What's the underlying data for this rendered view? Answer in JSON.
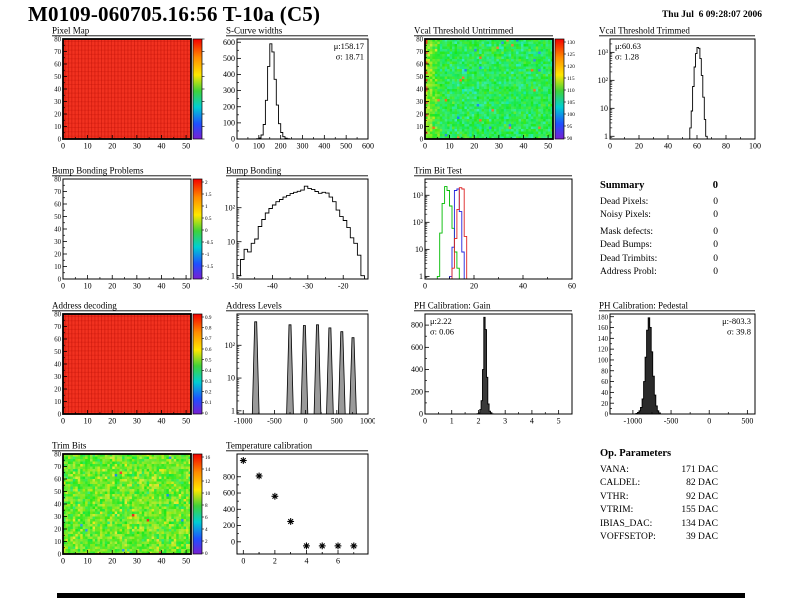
{
  "page": {
    "title": "M0109-060705.16:56 T-10a (C5)",
    "datetime": "Thu Jul  6 09:28:07 2006"
  },
  "summary": {
    "heading": "Summary",
    "heading_value": "0",
    "rows": [
      {
        "label": "Dead Pixels:",
        "value": "0"
      },
      {
        "label": "Noisy Pixels:",
        "value": "0"
      },
      {
        "label": "Mask defects:",
        "value": "0"
      },
      {
        "label": "Dead Bumps:",
        "value": "0"
      },
      {
        "label": "Dead Trimbits:",
        "value": "0"
      },
      {
        "label": "Address Probl:",
        "value": "0"
      }
    ]
  },
  "op_parameters": {
    "heading": "Op. Parameters",
    "rows": [
      {
        "label": "VANA:",
        "value": "171 DAC"
      },
      {
        "label": "CALDEL:",
        "value": "82 DAC"
      },
      {
        "label": "VTHR:",
        "value": "92 DAC"
      },
      {
        "label": "VTRIM:",
        "value": "155 DAC"
      },
      {
        "label": "IBIAS_DAC:",
        "value": "134 DAC"
      },
      {
        "label": "VOFFSETOP:",
        "value": "39 DAC"
      }
    ]
  },
  "chart_data": [
    {
      "id": "pixel_map",
      "type": "heatmap",
      "title": "Pixel Map",
      "x_range": [
        0,
        52
      ],
      "y_range": [
        0,
        80
      ],
      "x_ticks": [
        0,
        10,
        20,
        30,
        40,
        50
      ],
      "y_ticks": [
        0,
        10,
        20,
        30,
        40,
        50,
        60,
        70,
        80
      ],
      "pattern": "uniform_red",
      "values_summary": "all 52x80 pixels at maximum response (uniform red)",
      "colorbar": true,
      "colorbar_labels": []
    },
    {
      "id": "scurve_widths",
      "type": "histogram",
      "title": "S-Curve widths",
      "x_range": [
        0,
        600
      ],
      "y_range": [
        0,
        620
      ],
      "x_ticks": [
        0,
        100,
        200,
        300,
        400,
        500,
        600
      ],
      "y_ticks": [
        0,
        100,
        200,
        300,
        400,
        500,
        600
      ],
      "stats": [
        "μ:158.17",
        "σ: 18.71"
      ],
      "stats_pos": "ne",
      "bin_width": 10,
      "bins": [
        [
          90,
          2
        ],
        [
          100,
          6
        ],
        [
          110,
          25
        ],
        [
          120,
          90
        ],
        [
          130,
          240
        ],
        [
          140,
          450
        ],
        [
          150,
          590
        ],
        [
          160,
          540
        ],
        [
          170,
          370
        ],
        [
          180,
          210
        ],
        [
          190,
          95
        ],
        [
          200,
          40
        ],
        [
          210,
          14
        ],
        [
          220,
          5
        ],
        [
          230,
          2
        ]
      ]
    },
    {
      "id": "vcal_untrimmed",
      "type": "heatmap",
      "title": "Vcal Threshold Untrimmed",
      "x_range": [
        0,
        52
      ],
      "y_range": [
        0,
        80
      ],
      "x_ticks": [
        0,
        10,
        20,
        30,
        40,
        50
      ],
      "y_ticks": [
        0,
        10,
        20,
        30,
        40,
        50,
        60,
        70,
        80
      ],
      "pattern": "noisy_teal",
      "values_summary": "thresholds ~100-115 (green/cyan), warmer ~115-125 on left columns, sparse high/low outliers",
      "colorbar": true,
      "colorbar_labels": [
        "130",
        "125",
        "120",
        "115",
        "110",
        "105",
        "100",
        "95",
        "90"
      ]
    },
    {
      "id": "vcal_trimmed",
      "type": "histogram",
      "title": "Vcal Threshold Trimmed",
      "log_y": true,
      "x_range": [
        0,
        100
      ],
      "y_range": [
        0.8,
        3000
      ],
      "x_ticks": [
        0,
        20,
        40,
        60,
        80,
        100
      ],
      "y_ticks_log": [
        "1",
        "10",
        "10²",
        "10³"
      ],
      "stats": [
        "μ:60.63",
        "σ: 1.28"
      ],
      "stats_pos": "nw",
      "bin_width": 1,
      "bins": [
        [
          55,
          2
        ],
        [
          56,
          8
        ],
        [
          57,
          60
        ],
        [
          58,
          300
        ],
        [
          59,
          900
        ],
        [
          60,
          1500
        ],
        [
          61,
          1400
        ],
        [
          62,
          600
        ],
        [
          63,
          150
        ],
        [
          64,
          25
        ],
        [
          65,
          4
        ],
        [
          66,
          1
        ]
      ]
    },
    {
      "id": "bump_problems",
      "type": "heatmap",
      "title": "Bump Bonding Problems",
      "x_range": [
        0,
        52
      ],
      "y_range": [
        0,
        80
      ],
      "x_ticks": [
        0,
        10,
        20,
        30,
        40,
        50
      ],
      "y_ticks": [
        0,
        10,
        20,
        30,
        40,
        50,
        60,
        70,
        80
      ],
      "pattern": "empty",
      "values_summary": "no entries (empty map)",
      "colorbar": true,
      "colorbar_labels": [
        "2",
        "1.5",
        "1",
        "0.5",
        "0",
        "-0.5",
        "-1",
        "-1.5",
        "-2"
      ]
    },
    {
      "id": "bump_bonding",
      "type": "histogram",
      "title": "Bump Bonding",
      "log_y": true,
      "x_range": [
        -50,
        -13
      ],
      "y_range": [
        0.8,
        700
      ],
      "x_ticks": [
        -50,
        -40,
        -30,
        -20
      ],
      "y_ticks_log": [
        "1",
        "10",
        "10²"
      ],
      "bin_width": 1,
      "bins": [
        [
          -50,
          1
        ],
        [
          -49,
          3
        ],
        [
          -48,
          6
        ],
        [
          -47,
          5
        ],
        [
          -46,
          9
        ],
        [
          -45,
          12
        ],
        [
          -44,
          28
        ],
        [
          -43,
          45
        ],
        [
          -42,
          70
        ],
        [
          -41,
          95
        ],
        [
          -40,
          120
        ],
        [
          -39,
          150
        ],
        [
          -38,
          175
        ],
        [
          -37,
          205
        ],
        [
          -36,
          230
        ],
        [
          -35,
          260
        ],
        [
          -34,
          285
        ],
        [
          -33,
          305
        ],
        [
          -32,
          330
        ],
        [
          -31,
          430
        ],
        [
          -30,
          370
        ],
        [
          -29,
          345
        ],
        [
          -28,
          300
        ],
        [
          -27,
          265
        ],
        [
          -26,
          285
        ],
        [
          -25,
          270
        ],
        [
          -24,
          205
        ],
        [
          -23,
          150
        ],
        [
          -22,
          85
        ],
        [
          -21,
          55
        ],
        [
          -20,
          42
        ],
        [
          -19,
          26
        ],
        [
          -18,
          13
        ],
        [
          -17,
          9
        ],
        [
          -16,
          4
        ],
        [
          -15,
          1
        ]
      ]
    },
    {
      "id": "trim_bit_test",
      "type": "histogram",
      "title": "Trim Bit Test",
      "log_y": true,
      "x_range": [
        0,
        60
      ],
      "y_range": [
        0.8,
        4000
      ],
      "x_ticks": [
        0,
        20,
        40,
        60
      ],
      "y_ticks_log": [
        "1",
        "10",
        "10²",
        "10³"
      ],
      "bin_width": 1,
      "series": [
        {
          "name": "trim-bits-a",
          "color": "#00bb00",
          "bins": [
            [
              5,
              1
            ],
            [
              6,
              40
            ],
            [
              7,
              500
            ],
            [
              8,
              2100
            ],
            [
              9,
              1500
            ],
            [
              10,
              400
            ],
            [
              11,
              60
            ],
            [
              12,
              8
            ],
            [
              13,
              2
            ]
          ]
        },
        {
          "name": "trim-bits-b",
          "color": "#2222dd",
          "bins": [
            [
              10,
              1
            ],
            [
              11,
              12
            ],
            [
              12,
              1500
            ],
            [
              13,
              1700
            ],
            [
              14,
              250
            ],
            [
              15,
              8
            ]
          ]
        },
        {
          "name": "trim-bits-c",
          "color": "#dd2222",
          "bins": [
            [
              11,
              2
            ],
            [
              12,
              25
            ],
            [
              13,
              300
            ],
            [
              14,
              1900
            ],
            [
              15,
              1700
            ],
            [
              16,
              30
            ]
          ]
        }
      ]
    },
    {
      "id": "address_decoding",
      "type": "heatmap",
      "title": "Address decoding",
      "x_range": [
        0,
        52
      ],
      "y_range": [
        0,
        80
      ],
      "x_ticks": [
        0,
        10,
        20,
        30,
        40,
        50
      ],
      "y_ticks": [
        0,
        10,
        20,
        30,
        40,
        50,
        60,
        70,
        80
      ],
      "pattern": "uniform_red",
      "values_summary": "all pixels decode correctly (uniform red)",
      "colorbar": true,
      "colorbar_labels": [
        "0.9",
        "0.8",
        "0.7",
        "0.6",
        "0.5",
        "0.4",
        "0.3",
        "0.2",
        "0.1",
        "0"
      ]
    },
    {
      "id": "address_levels",
      "type": "spikes",
      "title": "Address Levels",
      "log_y": true,
      "x_range": [
        -1100,
        1000
      ],
      "y_range": [
        0.8,
        900
      ],
      "x_ticks": [
        -1000,
        -500,
        0,
        500,
        1000
      ],
      "y_ticks_log": [
        "1",
        "10",
        "10²"
      ],
      "spikes": [
        [
          -800,
          520
        ],
        [
          -250,
          420
        ],
        [
          -20,
          400
        ],
        [
          190,
          420
        ],
        [
          390,
          340
        ],
        [
          580,
          260
        ],
        [
          760,
          170
        ]
      ]
    },
    {
      "id": "ph_gain",
      "type": "histogram",
      "title": "PH Calibration: Gain",
      "x_range": [
        0,
        5.5
      ],
      "y_range": [
        0,
        900
      ],
      "x_ticks": [
        0,
        1,
        2,
        3,
        4,
        5
      ],
      "y_ticks": [
        0,
        200,
        400,
        600,
        800
      ],
      "stats": [
        "μ:2.22",
        "σ: 0.06"
      ],
      "stats_pos": "nw",
      "bin_width": 0.05,
      "fill": "#3a3a3a",
      "bins": [
        [
          1.95,
          3
        ],
        [
          2.0,
          10
        ],
        [
          2.05,
          40
        ],
        [
          2.1,
          120
        ],
        [
          2.15,
          400
        ],
        [
          2.2,
          870
        ],
        [
          2.25,
          760
        ],
        [
          2.3,
          330
        ],
        [
          2.35,
          90
        ],
        [
          2.4,
          25
        ],
        [
          2.45,
          8
        ],
        [
          2.5,
          2
        ]
      ]
    },
    {
      "id": "ph_pedestal",
      "type": "histogram",
      "title": "PH Calibration: Pedestal",
      "x_range": [
        -1300,
        600
      ],
      "y_range": [
        0,
        185
      ],
      "x_ticks": [
        -1000,
        -500,
        0,
        500
      ],
      "y_ticks": [
        0,
        20,
        40,
        60,
        80,
        100,
        120,
        140,
        160,
        180
      ],
      "stats": [
        "μ:-803.3",
        "σ: 39.8"
      ],
      "stats_pos": "ne",
      "bin_width": 20,
      "fill": "#2a2a2a",
      "bins": [
        [
          -960,
          1
        ],
        [
          -940,
          3
        ],
        [
          -920,
          6
        ],
        [
          -900,
          12
        ],
        [
          -880,
          28
        ],
        [
          -860,
          60
        ],
        [
          -840,
          105
        ],
        [
          -820,
          155
        ],
        [
          -800,
          178
        ],
        [
          -780,
          160
        ],
        [
          -760,
          115
        ],
        [
          -740,
          70
        ],
        [
          -720,
          35
        ],
        [
          -700,
          15
        ],
        [
          -680,
          6
        ],
        [
          -660,
          2
        ]
      ]
    },
    {
      "id": "trim_bits",
      "type": "heatmap",
      "title": "Trim Bits",
      "x_range": [
        0,
        52
      ],
      "y_range": [
        0,
        80
      ],
      "x_ticks": [
        0,
        10,
        20,
        30,
        40,
        50
      ],
      "y_ticks": [
        0,
        10,
        20,
        30,
        40,
        50,
        60,
        70,
        80
      ],
      "pattern": "noisy_green",
      "values_summary": "trim values mostly 8-11 (green) with yellow/orange speckles ~12-14",
      "colorbar": true,
      "colorbar_labels": [
        "16",
        "14",
        "12",
        "10",
        "8",
        "6",
        "4",
        "2",
        "0"
      ]
    },
    {
      "id": "temperature",
      "type": "scatter",
      "title": "Temperature calibration",
      "x_range": [
        -0.4,
        7.9
      ],
      "y_range": [
        -150,
        1080
      ],
      "x_ticks": [
        0,
        2,
        4,
        6
      ],
      "x_minor": [
        1,
        3,
        5,
        7
      ],
      "y_ticks": [
        0,
        200,
        400,
        600,
        800
      ],
      "points": [
        [
          0,
          1000
        ],
        [
          1,
          810
        ],
        [
          2,
          560
        ],
        [
          3,
          250
        ],
        [
          4,
          -50
        ],
        [
          5,
          -50
        ],
        [
          6,
          -50
        ],
        [
          7,
          -50
        ]
      ]
    }
  ]
}
